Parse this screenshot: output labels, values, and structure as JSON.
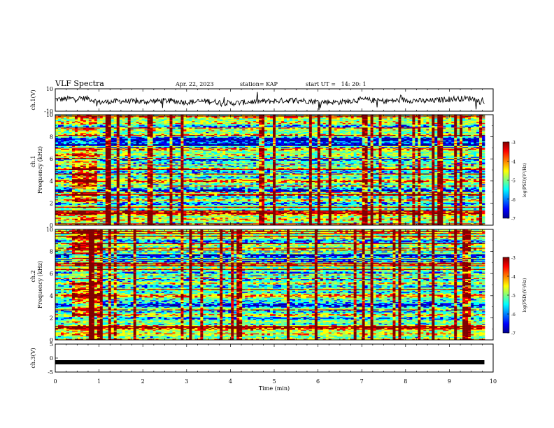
{
  "header": {
    "title": "VLF Spectra",
    "date": "Apr. 22, 2023",
    "station": "station= KAP",
    "start": "start UT =   14: 20: 1"
  },
  "chart_data": [
    {
      "type": "line",
      "panel": "ch1-waveform",
      "ylabel": "ch.1(V)",
      "ylim": [
        -10,
        10
      ],
      "yticks": [
        "10",
        "-10"
      ],
      "x": [
        0,
        0.25,
        0.5,
        0.75,
        1.0,
        1.5,
        2.0,
        2.5,
        3.0,
        3.5,
        4.0,
        4.5,
        5.0,
        5.5,
        6.0,
        6.5,
        7.0,
        7.5,
        8.0,
        8.5,
        9.0,
        9.5,
        9.8
      ],
      "y": [
        0.5,
        1,
        1.5,
        1.5,
        -2,
        -1,
        -1.5,
        -0.5,
        -2,
        -1,
        -3,
        -1.5,
        -1,
        0,
        -1.5,
        -2,
        0.5,
        -1,
        0,
        -1,
        1,
        1.5,
        -3
      ]
    },
    {
      "type": "heatmap",
      "panel": "ch1-spectrogram",
      "ylabel": "ch.1 Frequency (kHz)",
      "ylim": [
        0,
        10
      ],
      "yticks": [
        "0",
        "2",
        "4",
        "6",
        "8",
        "10"
      ],
      "colorbar": {
        "label": "log(PSD)(V²/Hz)",
        "ticks": [
          "-3",
          "-4",
          "-5",
          "-6",
          "-7"
        ],
        "range": [
          -7,
          -3
        ]
      }
    },
    {
      "type": "heatmap",
      "panel": "ch2-spectrogram",
      "ylabel": "ch.2 Frequency (kHz)",
      "ylim": [
        0,
        10
      ],
      "yticks": [
        "0",
        "2",
        "4",
        "6",
        "8",
        "10"
      ],
      "colorbar": {
        "label": "log(PSD)(V²/Hz)",
        "ticks": [
          "-3",
          "-4",
          "-5",
          "-6",
          "-7"
        ],
        "range": [
          -7,
          -3
        ]
      }
    },
    {
      "type": "line",
      "panel": "ch3-waveform",
      "ylabel": "ch.3(V)",
      "ylim": [
        -5,
        5
      ],
      "yticks": [
        "5",
        "0",
        "-5"
      ],
      "x": [
        0,
        9.8
      ],
      "y": [
        -1.5,
        -1.5
      ]
    }
  ],
  "xaxis": {
    "label": "Time (min)",
    "xlim": [
      0,
      10
    ],
    "ticks": [
      "0",
      "1",
      "2",
      "3",
      "4",
      "5",
      "6",
      "7",
      "8",
      "9",
      "10"
    ]
  },
  "colors": {
    "jet": [
      "#00008f",
      "#0000ff",
      "#00ffff",
      "#7fff7f",
      "#ffff00",
      "#ff0000",
      "#800000"
    ]
  }
}
